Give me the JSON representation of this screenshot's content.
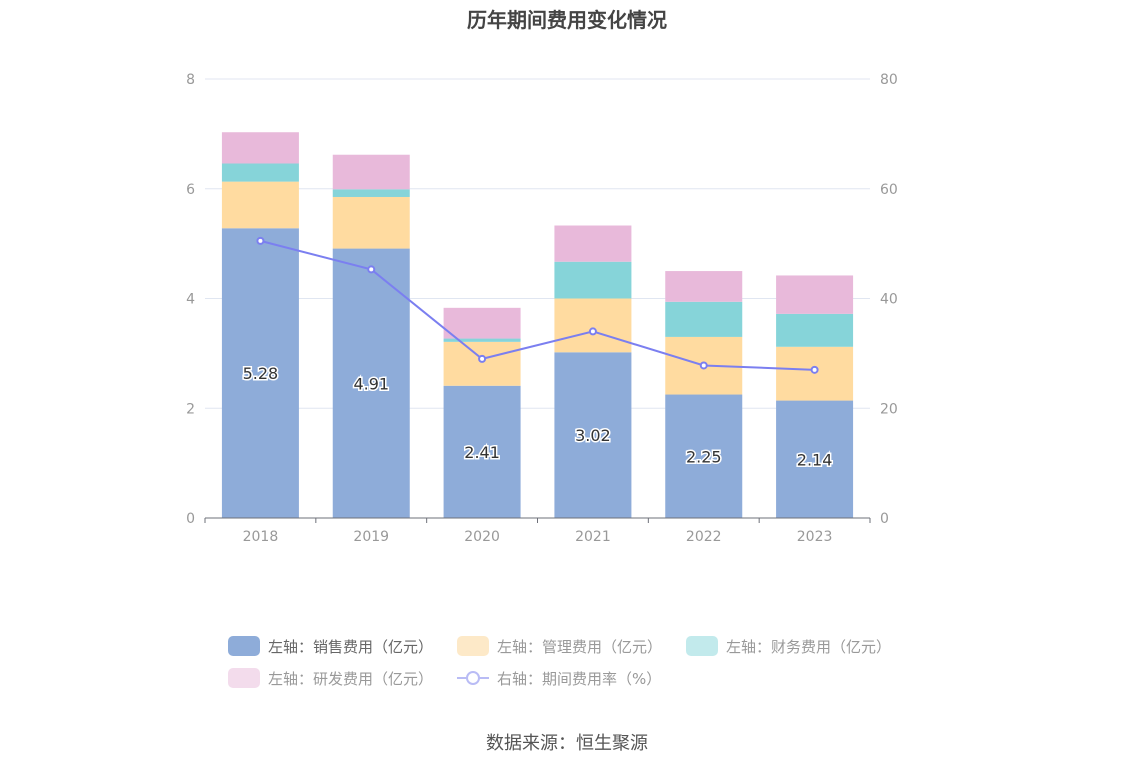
{
  "title": "历年期间费用变化情况",
  "source": "数据来源：恒生聚源",
  "chart_data": {
    "type": "bar",
    "stacked": true,
    "categories": [
      "2018",
      "2019",
      "2020",
      "2021",
      "2022",
      "2023"
    ],
    "left_axis": {
      "min": 0,
      "max": 8,
      "ticks": [
        "0",
        "2",
        "4",
        "6",
        "8"
      ]
    },
    "right_axis": {
      "min": 0,
      "max": 80,
      "ticks": [
        "0",
        "20",
        "40",
        "60",
        "80"
      ]
    },
    "grid": true,
    "legend_position": "bottom",
    "series": [
      {
        "name": "左轴：销售费用（亿元）",
        "type": "bar",
        "axis": "left",
        "color": "#8eacd9",
        "values": [
          5.28,
          4.91,
          2.41,
          3.02,
          2.25,
          2.14
        ],
        "data_labels": [
          "5.28",
          "4.91",
          "2.41",
          "3.02",
          "2.25",
          "2.14"
        ]
      },
      {
        "name": "左轴：管理费用（亿元）",
        "type": "bar",
        "axis": "left",
        "color": "#ffdba0",
        "values": [
          0.85,
          0.94,
          0.8,
          0.98,
          1.05,
          0.98
        ]
      },
      {
        "name": "左轴：财务费用（亿元）",
        "type": "bar",
        "axis": "left",
        "color": "#86d4d9",
        "values": [
          0.33,
          0.14,
          0.06,
          0.67,
          0.64,
          0.6
        ]
      },
      {
        "name": "左轴：研发费用（亿元）",
        "type": "bar",
        "axis": "left",
        "color": "#e8b9da",
        "values": [
          0.57,
          0.63,
          0.56,
          0.66,
          0.56,
          0.7
        ]
      },
      {
        "name": "右轴：期间费用率（%）",
        "type": "line",
        "axis": "right",
        "color": "#7b7ff0",
        "values": [
          50.5,
          45.3,
          29.0,
          34.0,
          27.8,
          27.0
        ]
      }
    ]
  }
}
